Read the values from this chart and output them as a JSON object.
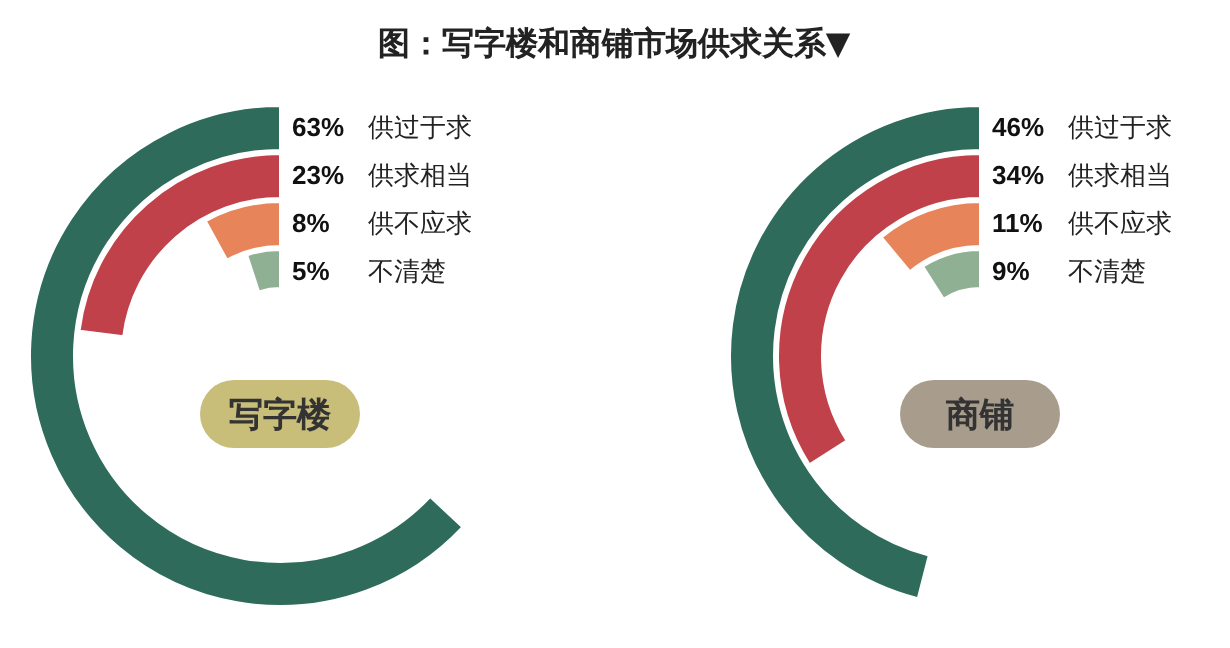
{
  "chart_data": [
    {
      "type": "other",
      "title": "图：写字楼和商铺市场供求关系▼",
      "categories": [
        "供过于求",
        "供求相当",
        "供不应求",
        "不清楚"
      ],
      "values": [
        63,
        23,
        8,
        5
      ],
      "value_labels": [
        "63%",
        "23%",
        "8%",
        "5%"
      ],
      "colors": [
        "#2e6b5a",
        "#c0414a",
        "#e8845a",
        "#8fb093"
      ],
      "annotations": [
        "写字楼"
      ]
    },
    {
      "type": "other",
      "categories": [
        "供过于求",
        "供求相当",
        "供不应求",
        "不清楚"
      ],
      "values": [
        46,
        34,
        11,
        9
      ],
      "value_labels": [
        "46%",
        "34%",
        "11%",
        "9%"
      ],
      "colors": [
        "#2e6b5a",
        "#c0414a",
        "#e8845a",
        "#8fb093"
      ],
      "annotations": [
        "商铺"
      ]
    }
  ]
}
